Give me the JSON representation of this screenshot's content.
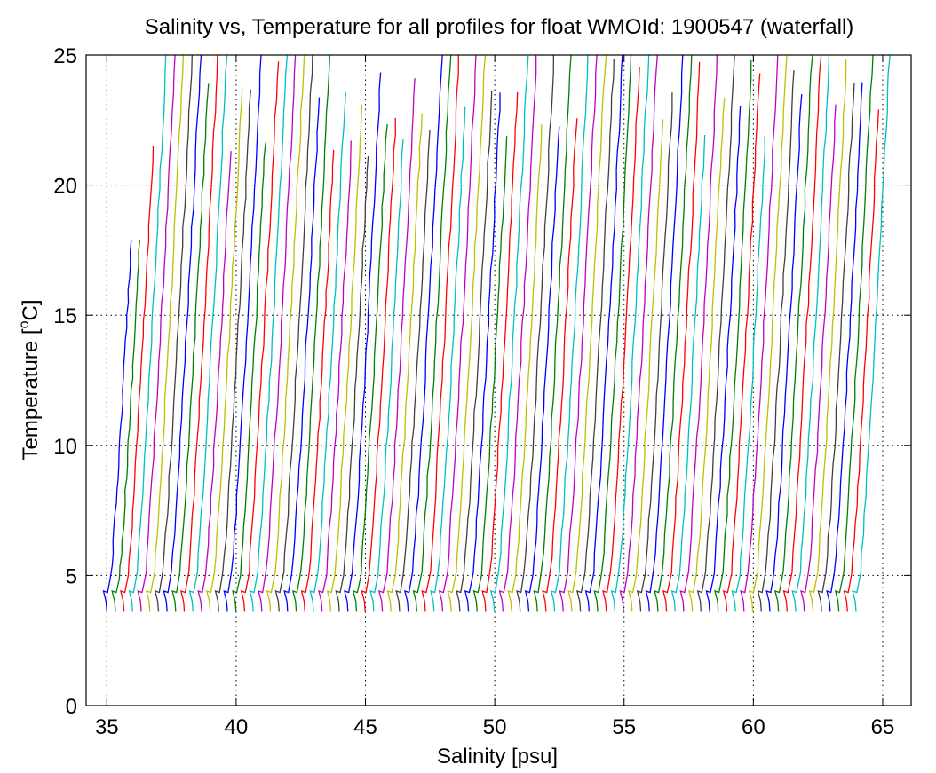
{
  "chart_data": {
    "type": "line",
    "title": "Salinity vs, Temperature for all profiles for float WMOId: 1900547 (waterfall)",
    "xlabel": "Salinity [psu]",
    "ylabel_prefix": "Temperature [",
    "ylabel_superscript": "o",
    "ylabel_suffix": "C]",
    "xlim": [
      34.2,
      66.1
    ],
    "ylim": [
      0,
      25
    ],
    "xticks": [
      35,
      40,
      45,
      50,
      55,
      60,
      65
    ],
    "yticks": [
      0,
      5,
      10,
      15,
      20,
      25
    ],
    "grid": true,
    "grid_style": "dotted",
    "profile_count": 88,
    "waterfall_start_salinity": 34.95,
    "waterfall_offset_psu": 0.333,
    "profile_shape": {
      "bottom_temperature": 3.6,
      "mixed_layer_temperature": 4.4,
      "surface_temperature_range": [
        17.9,
        25
      ],
      "salinity_change_bottom_to_surface_psu": 1.2
    },
    "series_colors": [
      "#0000ff",
      "#007f00",
      "#ff0000",
      "#00bfbf",
      "#bf00bf",
      "#bfbf00",
      "#3f3f3f"
    ]
  }
}
